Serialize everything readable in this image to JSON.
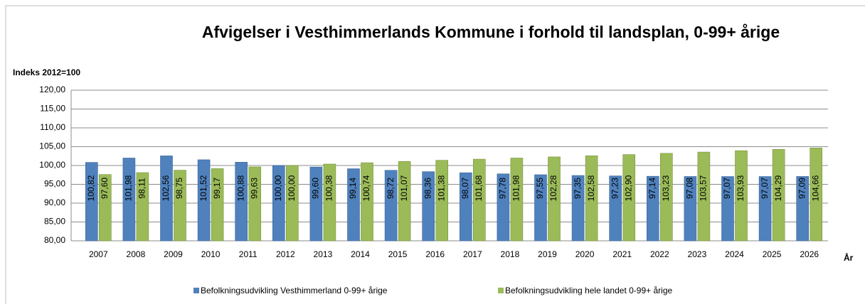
{
  "chart_data": {
    "type": "bar",
    "title": "Afvigelser i Vesthimmerlands Kommune i forhold til landsplan, 0-99+ årige",
    "y_label": "Indeks 2012=100",
    "x_label": "År",
    "categories": [
      "2007",
      "2008",
      "2009",
      "2010",
      "2011",
      "2012",
      "2013",
      "2014",
      "2015",
      "2016",
      "2017",
      "2018",
      "2019",
      "2020",
      "2021",
      "2022",
      "2023",
      "2024",
      "2025",
      "2026"
    ],
    "series": [
      {
        "name": "Befolkningsudvikling Vesthimmerland 0-99+ årige",
        "color": "#4f81bd",
        "values": [
          100.82,
          101.98,
          102.56,
          101.52,
          100.88,
          100.0,
          99.6,
          99.14,
          98.72,
          98.36,
          98.07,
          97.78,
          97.55,
          97.35,
          97.23,
          97.14,
          97.08,
          97.07,
          97.07,
          97.09
        ],
        "value_labels": [
          "100,82",
          "101,98",
          "102,56",
          "101,52",
          "100,88",
          "100,00",
          "99,60",
          "99,14",
          "98,72",
          "98,36",
          "98,07",
          "97,78",
          "97,55",
          "97,35",
          "97,23",
          "97,14",
          "97,08",
          "97,07",
          "97,07",
          "97,09"
        ]
      },
      {
        "name": "Befolkningsudvikling hele landet 0-99+ årige",
        "color": "#9bbb59",
        "values": [
          97.6,
          98.11,
          98.75,
          99.17,
          99.63,
          100.0,
          100.38,
          100.74,
          101.07,
          101.38,
          101.68,
          101.98,
          102.28,
          102.58,
          102.9,
          103.23,
          103.57,
          103.93,
          104.29,
          104.66
        ],
        "value_labels": [
          "97,60",
          "98,11",
          "98,75",
          "99,17",
          "99,63",
          "100,00",
          "100,38",
          "100,74",
          "101,07",
          "101,38",
          "101,68",
          "101,98",
          "102,28",
          "102,58",
          "102,90",
          "103,23",
          "103,57",
          "103,93",
          "104,29",
          "104,66"
        ]
      }
    ],
    "ylim": [
      80,
      120
    ],
    "yticks": [
      {
        "value": 80,
        "label": "80,00"
      },
      {
        "value": 85,
        "label": "85,00"
      },
      {
        "value": 90,
        "label": "90,00"
      },
      {
        "value": 95,
        "label": "95,00"
      },
      {
        "value": 100,
        "label": "100,00"
      },
      {
        "value": 105,
        "label": "105,00"
      },
      {
        "value": 110,
        "label": "110,00"
      },
      {
        "value": 115,
        "label": "115,00"
      },
      {
        "value": 120,
        "label": "120,00"
      }
    ],
    "grid": true,
    "legend": "bottom"
  }
}
